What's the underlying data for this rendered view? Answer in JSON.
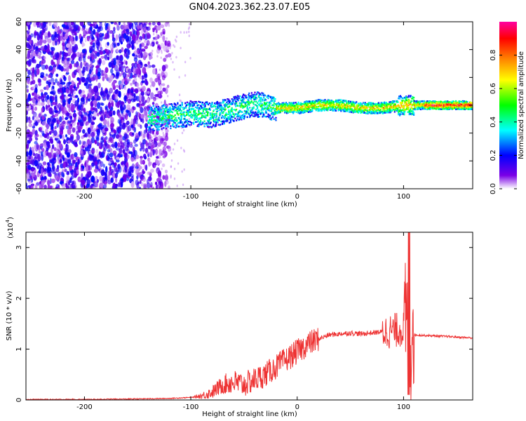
{
  "title": "GN04.2023.362.23.07.E05",
  "chart_data": [
    {
      "type": "heatmap",
      "xlabel": "Height of straight line (km)",
      "ylabel": "Frequency (Hz)",
      "xlim": [
        -255,
        165
      ],
      "ylim": [
        -60,
        60
      ],
      "xticks": [
        -200,
        -100,
        0,
        100
      ],
      "xtick_labels": [
        "-200",
        "-100",
        "0",
        "100"
      ],
      "yticks": [
        -60,
        -40,
        -20,
        0,
        20,
        40,
        60
      ],
      "ytick_labels": [
        "-60",
        "-40",
        "-20",
        "0",
        "20",
        "40",
        "60"
      ],
      "colorbar": {
        "label": "Normalized spectral amplitude",
        "range": [
          0,
          1
        ],
        "ticks": [
          0.0,
          0.2,
          0.4,
          0.6,
          0.8
        ],
        "tick_labels": [
          "0.0",
          "0.2",
          "0.4",
          "0.6",
          "0.8"
        ],
        "colors": [
          "#ffffff",
          "#7a00e6",
          "#0000ff",
          "#00ffff",
          "#00ff00",
          "#ffff00",
          "#ff8000",
          "#ff0000",
          "#ff00a0"
        ]
      },
      "ridge": {
        "x": [
          -140,
          -120,
          -100,
          -80,
          -60,
          -40,
          -20,
          0,
          20,
          40,
          60,
          80,
          100,
          120,
          140,
          165
        ],
        "frequency": [
          -10,
          -8,
          -6,
          -7,
          -3,
          1,
          -2,
          -2,
          0,
          0,
          -2,
          -2,
          0,
          0,
          0,
          0
        ]
      }
    },
    {
      "type": "line",
      "xlabel": "Height of straight line (km)",
      "ylabel": "SNR (10 * v/v)",
      "y_scale_label": "(x10",
      "y_scale_exp": "4",
      "y_scale_close": ")",
      "xlim": [
        -255,
        165
      ],
      "ylim": [
        0,
        3.3
      ],
      "xticks": [
        -200,
        -100,
        0,
        100
      ],
      "xtick_labels": [
        "-200",
        "-100",
        "0",
        "100"
      ],
      "yticks": [
        0,
        1,
        2,
        3
      ],
      "ytick_labels": [
        "0",
        "1",
        "2",
        "3"
      ],
      "color": "#ee3333",
      "series": [
        {
          "x": [
            -255,
            -200,
            -150,
            -120,
            -100,
            -90,
            -80,
            -70,
            -60,
            -50,
            -40,
            -30,
            -20,
            -10,
            0,
            10,
            20,
            30,
            40,
            50,
            60,
            70,
            80,
            90,
            100,
            104,
            106,
            108,
            110,
            120,
            140,
            165
          ],
          "y": [
            0.01,
            0.01,
            0.02,
            0.03,
            0.05,
            0.08,
            0.15,
            0.3,
            0.35,
            0.3,
            0.4,
            0.5,
            0.65,
            0.8,
            0.95,
            1.1,
            1.2,
            1.28,
            1.3,
            1.32,
            1.3,
            1.32,
            1.34,
            1.36,
            1.4,
            1.6,
            0.3,
            1.8,
            1.28,
            1.27,
            1.25,
            1.22
          ]
        }
      ]
    }
  ]
}
